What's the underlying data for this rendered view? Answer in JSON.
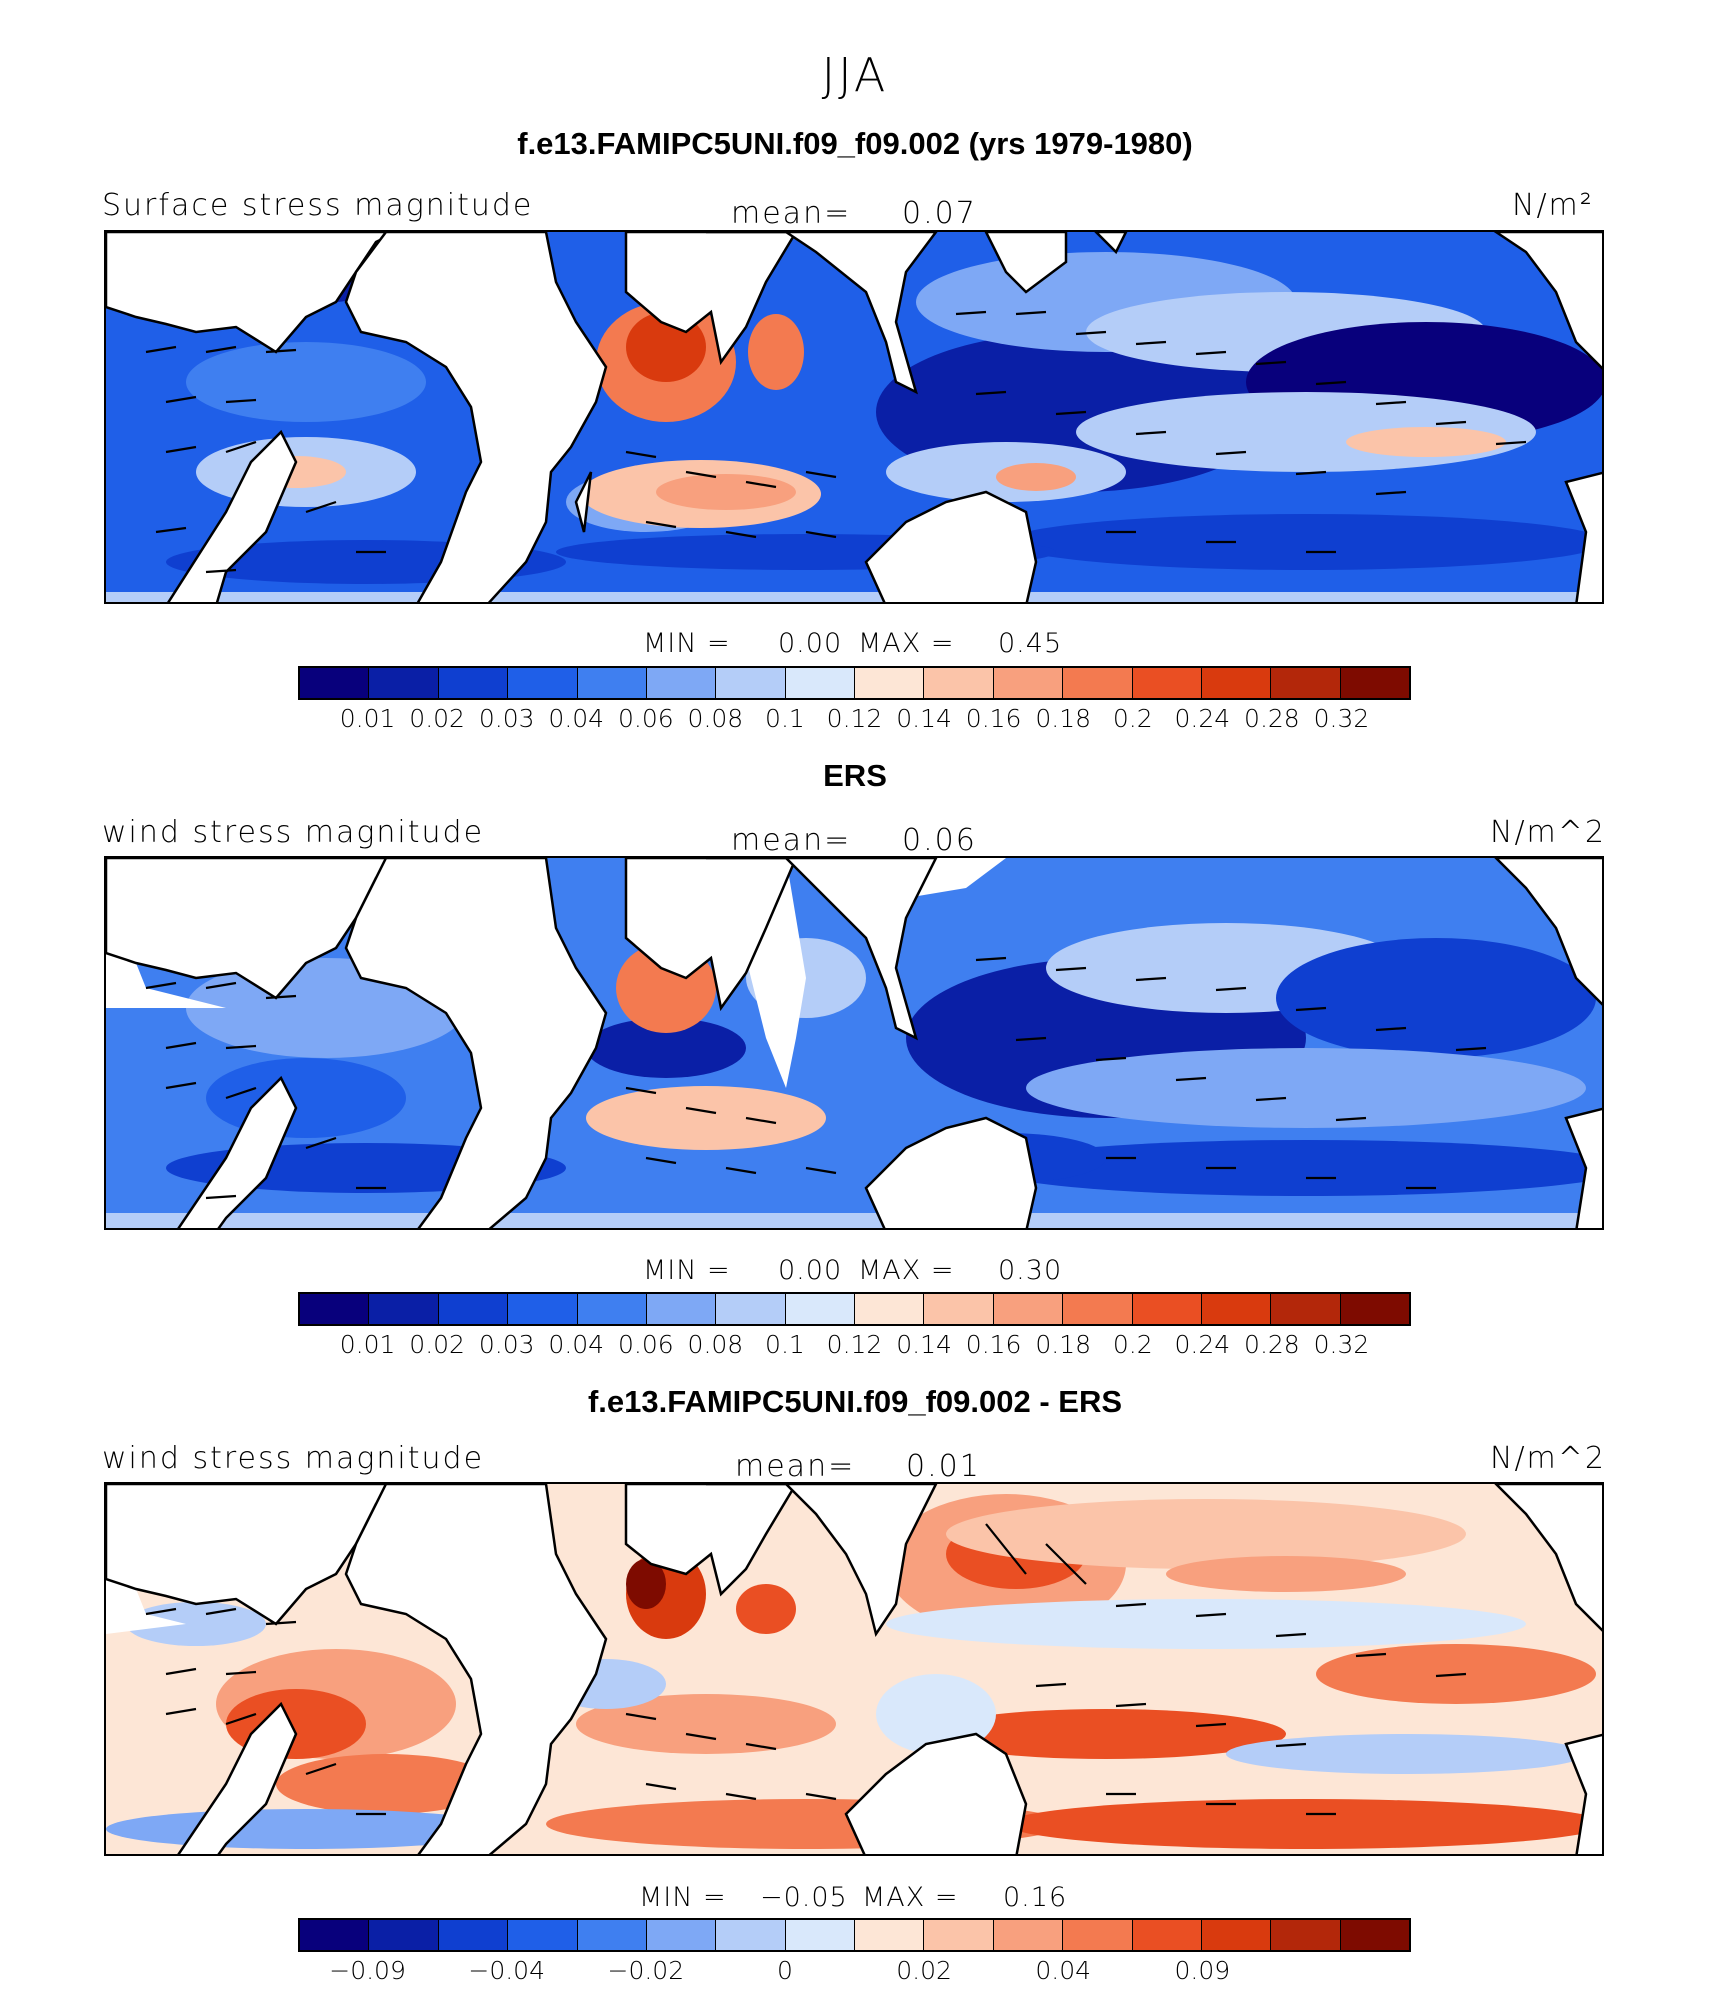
{
  "figure_title": "JJA",
  "colors": [
    "#08007c",
    "#0a1fa6",
    "#0f3fd0",
    "#1f5fe8",
    "#3f7ff0",
    "#7ea8f5",
    "#b4cdf8",
    "#d9e8fb",
    "#fde6d6",
    "#fbc4a9",
    "#f8a07e",
    "#f37a50",
    "#ea4f23",
    "#d93a0e",
    "#b3270a",
    "#7e0b00"
  ],
  "panels": [
    {
      "title": "f.e13.FAMIPC5UNI.f09_f09.002 (yrs 1979-1980)",
      "left_label": "Surface stress magnitude",
      "mean_label": "mean=",
      "mean_value": "0.07",
      "units": "N/m²",
      "min_label": "MIN =",
      "min_value": "0.00",
      "max_label": "MAX =",
      "max_value": "0.45",
      "ticks": [
        "0.01",
        "0.02",
        "0.03",
        "0.04",
        "0.06",
        "0.08",
        "0.1",
        "0.12",
        "0.14",
        "0.16",
        "0.18",
        "0.2",
        "0.24",
        "0.28",
        "0.32"
      ]
    },
    {
      "title": "ERS",
      "left_label": "wind stress magnitude",
      "mean_label": "mean=",
      "mean_value": "0.06",
      "units": "N/m^2",
      "min_label": "MIN =",
      "min_value": "0.00",
      "max_label": "MAX =",
      "max_value": "0.30",
      "ticks": [
        "0.01",
        "0.02",
        "0.03",
        "0.04",
        "0.06",
        "0.08",
        "0.1",
        "0.12",
        "0.14",
        "0.16",
        "0.18",
        "0.2",
        "0.24",
        "0.28",
        "0.32"
      ]
    },
    {
      "title": "f.e13.FAMIPC5UNI.f09_f09.002 - ERS",
      "left_label": "wind stress magnitude",
      "mean_label": "mean=",
      "mean_value": "0.01",
      "units": "N/m^2",
      "min_label": "MIN =",
      "min_value": "−0.05",
      "max_label": "MAX =",
      "max_value": "0.16",
      "ticks": [
        "−0.09",
        "",
        "−0.04",
        "",
        "−0.02",
        "",
        "0",
        "",
        "0.02",
        "",
        "0.04",
        "",
        "0.09",
        "",
        ""
      ]
    }
  ]
}
